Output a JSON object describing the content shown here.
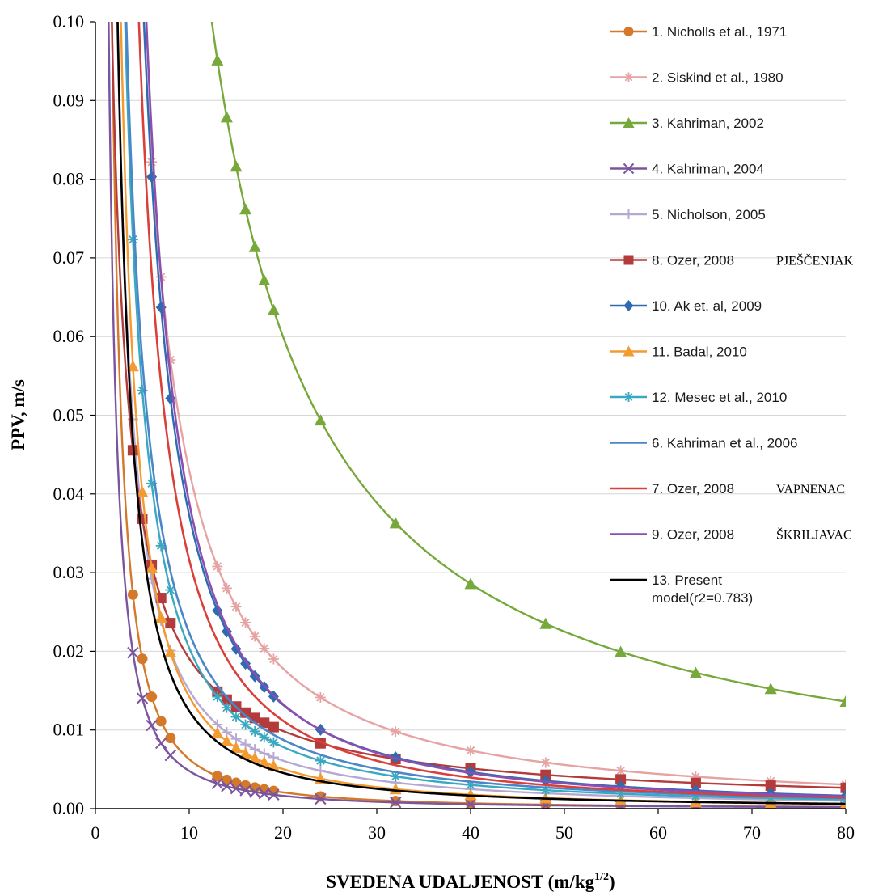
{
  "chart_data": {
    "type": "line",
    "xlabel": "SVEDENA UDALJENOST (m/kg",
    "xlabel_exponent": "1/2",
    "xlabel_close": ")",
    "ylabel": "PPV, m/s",
    "xlim": [
      0,
      80
    ],
    "ylim": [
      0,
      0.1
    ],
    "xticks": [
      "0",
      "10",
      "20",
      "30",
      "40",
      "50",
      "60",
      "70",
      "80"
    ],
    "yticks": [
      "0.00",
      "0.01",
      "0.02",
      "0.03",
      "0.04",
      "0.05",
      "0.06",
      "0.07",
      "0.08",
      "0.09",
      "0.10"
    ],
    "legend_position": "right",
    "series": [
      {
        "name": "1. Nicholls et al., 1971",
        "color": "#d4782a",
        "marker": "circle",
        "k": 0.25,
        "n": 1.6
      },
      {
        "name": "2. Siskind et al., 1980",
        "color": "#e6a3a3",
        "marker": "star",
        "k": 0.8,
        "n": 1.27
      },
      {
        "name": "3. Kahriman, 2002",
        "color": "#76a83a",
        "marker": "triangle",
        "k": 1.48,
        "n": 1.07
      },
      {
        "name": "4. Kahriman, 2004",
        "color": "#7b54a0",
        "marker": "x",
        "k": 0.17,
        "n": 1.55
      },
      {
        "name": "5. Nicholson, 2005",
        "color": "#b5a9d4",
        "marker": "plus",
        "k": 0.3,
        "n": 1.3
      },
      {
        "name": "8. Ozer, 2008",
        "rock": "PJEŠČENJAK",
        "color": "#b33b3b",
        "marker": "square",
        "k": 0.17,
        "n": 0.95
      },
      {
        "name": "10. Ak et. al, 2009",
        "color": "#2e6bb0",
        "marker": "diamond",
        "k": 1.18,
        "n": 1.5
      },
      {
        "name": "11. Badal, 2010",
        "color": "#f39a30",
        "marker": "triangle",
        "k": 0.45,
        "n": 1.5
      },
      {
        "name": "12. Mesec et al., 2010",
        "color": "#3aa8c0",
        "marker": "star",
        "k": 0.49,
        "n": 1.38
      },
      {
        "name": "6. Kahriman et al., 2006",
        "color": "#4a86c8",
        "marker": "none",
        "k": 0.5,
        "n": 1.35
      },
      {
        "name": "7. Ozer, 2008",
        "rock": "VAPNENAC",
        "color": "#d9403a",
        "marker": "none",
        "k": 1.0,
        "n": 1.5
      },
      {
        "name": "9. Ozer, 2008",
        "rock": "ŠKRILJAVAC",
        "color": "#8a4fb0",
        "marker": "none",
        "k": 1.38,
        "n": 1.55
      },
      {
        "name": "13. Present model(r2=0.783)",
        "color": "#000000",
        "marker": "none",
        "k": 0.35,
        "n": 1.45
      }
    ]
  }
}
